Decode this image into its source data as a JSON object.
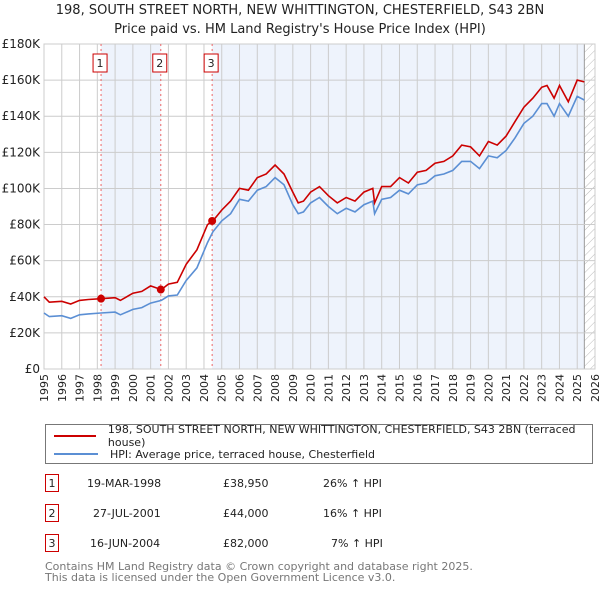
{
  "title": "198, SOUTH STREET NORTH, NEW WHITTINGTON, CHESTERFIELD, S43 2BN",
  "subtitle": "Price paid vs. HM Land Registry's House Price Index (HPI)",
  "colors": {
    "property": "#cc0000",
    "hpi": "#5b8fd4",
    "shade": "#eef3fc",
    "grid": "#cccccc"
  },
  "chart_data": {
    "type": "line",
    "title": "198, SOUTH STREET NORTH, NEW WHITTINGTON, CHESTERFIELD, S43 2BN",
    "xlabel": "",
    "ylabel": "",
    "xlim": [
      1995,
      2026
    ],
    "ylim": [
      0,
      180000
    ],
    "yticks": [
      "£0",
      "£20K",
      "£40K",
      "£60K",
      "£80K",
      "£100K",
      "£120K",
      "£140K",
      "£160K",
      "£180K"
    ],
    "xticks": [
      "1995",
      "1996",
      "1997",
      "1998",
      "1999",
      "2000",
      "2001",
      "2002",
      "2003",
      "2004",
      "2005",
      "2006",
      "2007",
      "2008",
      "2009",
      "2010",
      "2011",
      "2012",
      "2013",
      "2014",
      "2015",
      "2016",
      "2017",
      "2018",
      "2019",
      "2020",
      "2021",
      "2022",
      "2023",
      "2024",
      "2025",
      "2026"
    ],
    "grid": true,
    "series": [
      {
        "name": "198, SOUTH STREET NORTH, NEW WHITTINGTON, CHESTERFIELD, S43 2BN (terraced house)",
        "x": [
          1995,
          1995.3,
          1996,
          1996.5,
          1997,
          1997.5,
          1998.2,
          1999,
          1999.3,
          2000,
          2000.5,
          2001,
          2001.6,
          2002,
          2002.5,
          2003,
          2003.6,
          2004.2,
          2004.5,
          2005,
          2005.5,
          2006,
          2006.5,
          2007,
          2007.5,
          2008,
          2008.5,
          2009,
          2009.3,
          2009.6,
          2010,
          2010.5,
          2011,
          2011.5,
          2012,
          2012.5,
          2013,
          2013.5,
          2013.6,
          2014,
          2014.5,
          2015,
          2015.5,
          2016,
          2016.5,
          2017,
          2017.5,
          2018,
          2018.5,
          2019,
          2019.5,
          2020,
          2020.5,
          2021,
          2021.5,
          2022,
          2022.5,
          2023,
          2023.3,
          2023.7,
          2024,
          2024.5,
          2025,
          2025.4
        ],
        "y": [
          40000,
          37000,
          37500,
          36000,
          38000,
          38500,
          38950,
          39500,
          38000,
          42000,
          43000,
          46000,
          44000,
          47000,
          48000,
          58000,
          66000,
          80000,
          82000,
          88000,
          93000,
          100000,
          99000,
          106000,
          108000,
          113000,
          108000,
          98000,
          92000,
          93000,
          98000,
          101000,
          96000,
          92000,
          95000,
          93000,
          98000,
          100000,
          92000,
          101000,
          101000,
          106000,
          103000,
          109000,
          110000,
          114000,
          115000,
          118000,
          124000,
          123000,
          118000,
          126000,
          124000,
          129000,
          137000,
          145000,
          150000,
          156000,
          157000,
          150000,
          157000,
          148000,
          160000,
          159000
        ]
      },
      {
        "name": "HPI: Average price, terraced house, Chesterfield",
        "x": [
          1995,
          1995.3,
          1996,
          1996.5,
          1997,
          1997.5,
          1998.2,
          1999,
          1999.3,
          2000,
          2000.5,
          2001,
          2001.6,
          2002,
          2002.5,
          2003,
          2003.6,
          2004.2,
          2004.5,
          2005,
          2005.5,
          2006,
          2006.5,
          2007,
          2007.5,
          2008,
          2008.5,
          2009,
          2009.3,
          2009.6,
          2010,
          2010.5,
          2011,
          2011.5,
          2012,
          2012.5,
          2013,
          2013.5,
          2013.6,
          2014,
          2014.5,
          2015,
          2015.5,
          2016,
          2016.5,
          2017,
          2017.5,
          2018,
          2018.5,
          2019,
          2019.5,
          2020,
          2020.5,
          2021,
          2021.5,
          2022,
          2022.5,
          2023,
          2023.3,
          2023.7,
          2024,
          2024.5,
          2025,
          2025.4
        ],
        "y": [
          31000,
          29000,
          29500,
          28000,
          30000,
          30500,
          31000,
          31500,
          30000,
          33000,
          34000,
          36500,
          38000,
          40500,
          41000,
          49000,
          56000,
          70000,
          76000,
          82000,
          86000,
          94000,
          93000,
          99000,
          101000,
          106000,
          102000,
          91000,
          86000,
          87000,
          92000,
          95000,
          90000,
          86000,
          89000,
          87000,
          91000,
          93000,
          86000,
          94000,
          95000,
          99000,
          97000,
          102000,
          103000,
          107000,
          108000,
          110000,
          115000,
          115000,
          111000,
          118000,
          117000,
          121000,
          128000,
          136000,
          140000,
          147000,
          147000,
          140000,
          147000,
          140000,
          151000,
          149000
        ]
      }
    ],
    "sales": [
      {
        "label": "1",
        "x": 1998.21,
        "y": 38950
      },
      {
        "label": "2",
        "x": 2001.57,
        "y": 44000
      },
      {
        "label": "3",
        "x": 2004.46,
        "y": 82000
      }
    ],
    "shaded_ranges": [
      [
        1998.21,
        2001.57
      ],
      [
        2004.46,
        2025.4
      ]
    ],
    "hatched_range": [
      2025.4,
      2026
    ],
    "legend_position": "bottom"
  },
  "legend": {
    "property": "198, SOUTH STREET NORTH, NEW WHITTINGTON, CHESTERFIELD, S43 2BN (terraced house)",
    "hpi": "HPI: Average price, terraced house, Chesterfield"
  },
  "transactions": [
    {
      "num": "1",
      "date": "19-MAR-1998",
      "price": "£38,950",
      "change": "26% ↑ HPI"
    },
    {
      "num": "2",
      "date": "27-JUL-2001",
      "price": "£44,000",
      "change": "16% ↑ HPI"
    },
    {
      "num": "3",
      "date": "16-JUN-2004",
      "price": "£82,000",
      "change": "7% ↑ HPI"
    }
  ],
  "footer": {
    "line1": "Contains HM Land Registry data © Crown copyright and database right 2025.",
    "line2": "This data is licensed under the Open Government Licence v3.0."
  }
}
